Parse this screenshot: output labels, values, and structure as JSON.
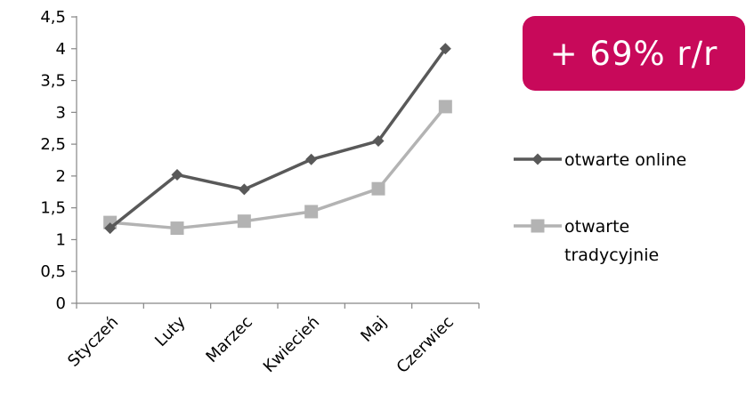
{
  "badge": {
    "text": "+ 69% r/r",
    "color": "#c8095a"
  },
  "chart_data": {
    "type": "line",
    "categories": [
      "Styczeń",
      "Luty",
      "Marzec",
      "Kwiecień",
      "Maj",
      "Czerwiec"
    ],
    "series": [
      {
        "name": "otwarte online",
        "values": [
          1.18,
          2.02,
          1.79,
          2.26,
          2.55,
          4.0
        ],
        "color": "#595959",
        "marker": "diamond"
      },
      {
        "name": "otwarte tradycyjnie",
        "values": [
          1.27,
          1.18,
          1.29,
          1.44,
          1.8,
          3.09
        ],
        "color": "#b3b3b3",
        "marker": "square"
      }
    ],
    "yticks": [
      "0",
      "0,5",
      "1",
      "1,5",
      "2",
      "2,5",
      "3",
      "3,5",
      "4",
      "4,5"
    ],
    "ylim": [
      0,
      4.5
    ],
    "grid": false,
    "legend": {
      "position": "right",
      "entries": [
        {
          "lines": [
            "otwarte online"
          ]
        },
        {
          "lines": [
            "otwarte",
            "tradycyjnie"
          ]
        }
      ]
    }
  }
}
